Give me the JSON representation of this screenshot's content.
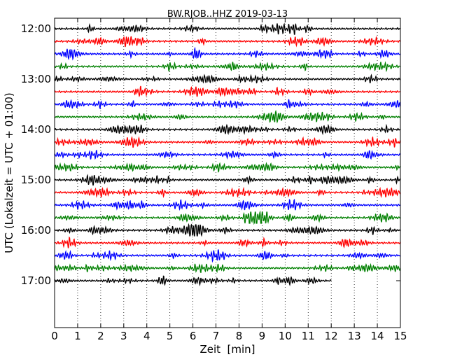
{
  "chart_data": {
    "type": "line",
    "title": "BW.RJOB..HHZ 2019-03-13",
    "xlabel": "Zeit  [min]",
    "ylabel": "UTC (Lokalzeit = UTC + 01:00)",
    "xlim": [
      0,
      15
    ],
    "x_ticks": [
      "0",
      "1",
      "2",
      "3",
      "4",
      "5",
      "6",
      "7",
      "8",
      "9",
      "10",
      "11",
      "12",
      "13",
      "14",
      "15"
    ],
    "y_tick_labels": [
      "12:00",
      "13:00",
      "14:00",
      "15:00",
      "16:00",
      "17:00"
    ],
    "grid": "vertical dotted lines at each minute",
    "trace_colors": [
      "#000000",
      "#ff0000",
      "#0000ff",
      "#008000"
    ],
    "traces": [
      {
        "start_utc": "12:00",
        "end_minute": 15
      },
      {
        "start_utc": "12:15",
        "end_minute": 15
      },
      {
        "start_utc": "12:30",
        "end_minute": 15
      },
      {
        "start_utc": "12:45",
        "end_minute": 15
      },
      {
        "start_utc": "13:00",
        "end_minute": 15
      },
      {
        "start_utc": "13:15",
        "end_minute": 15
      },
      {
        "start_utc": "13:30",
        "end_minute": 15
      },
      {
        "start_utc": "13:45",
        "end_minute": 15
      },
      {
        "start_utc": "14:00",
        "end_minute": 15
      },
      {
        "start_utc": "14:15",
        "end_minute": 15
      },
      {
        "start_utc": "14:30",
        "end_minute": 15
      },
      {
        "start_utc": "14:45",
        "end_minute": 15
      },
      {
        "start_utc": "15:00",
        "end_minute": 15
      },
      {
        "start_utc": "15:15",
        "end_minute": 15
      },
      {
        "start_utc": "15:30",
        "end_minute": 15
      },
      {
        "start_utc": "15:45",
        "end_minute": 15
      },
      {
        "start_utc": "16:00",
        "end_minute": 15
      },
      {
        "start_utc": "16:15",
        "end_minute": 15
      },
      {
        "start_utc": "16:30",
        "end_minute": 15
      },
      {
        "start_utc": "16:45",
        "end_minute": 15
      },
      {
        "start_utc": "17:00",
        "end_minute": 12
      }
    ]
  }
}
